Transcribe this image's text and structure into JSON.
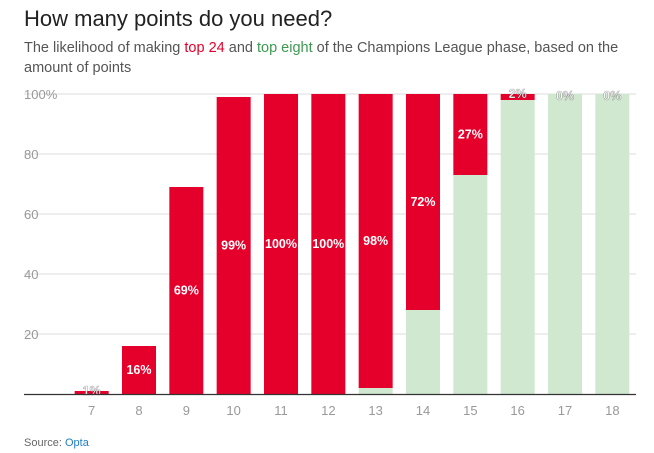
{
  "header": {
    "title": "How many points do you need?",
    "subtitle_pre": "The likelihood of making ",
    "subtitle_top24": "top 24",
    "subtitle_mid": " and ",
    "subtitle_top8": "top eight",
    "subtitle_post": " of the Champions League phase, based on the amount of points"
  },
  "footer": {
    "source_label": "Source: ",
    "source_name": "Opta"
  },
  "colors": {
    "top24": "#e4002b",
    "top8": "#cfe8cf",
    "grid": "#dcdcdc",
    "axis_text": "#999999"
  },
  "chart_data": {
    "type": "bar",
    "categories": [
      "7",
      "8",
      "9",
      "10",
      "11",
      "12",
      "13",
      "14",
      "15",
      "16",
      "17",
      "18"
    ],
    "series": [
      {
        "name": "top 24",
        "values": [
          1,
          16,
          69,
          99,
          100,
          100,
          98,
          72,
          27,
          2,
          0,
          0
        ]
      },
      {
        "name": "top eight",
        "values": [
          0,
          0,
          0,
          0,
          0,
          0,
          2,
          28,
          73,
          98,
          100,
          100
        ]
      }
    ],
    "data_labels": [
      "1%",
      "16%",
      "69%",
      "99%",
      "100%",
      "100%",
      "98%",
      "72%",
      "27%",
      "2%",
      "0%",
      "0%"
    ],
    "yticks": [
      0,
      20,
      40,
      60,
      80,
      100
    ],
    "ytick_labels": [
      "",
      "20",
      "40",
      "60",
      "80",
      "100%"
    ],
    "ylim": [
      0,
      100
    ],
    "grid": true
  }
}
